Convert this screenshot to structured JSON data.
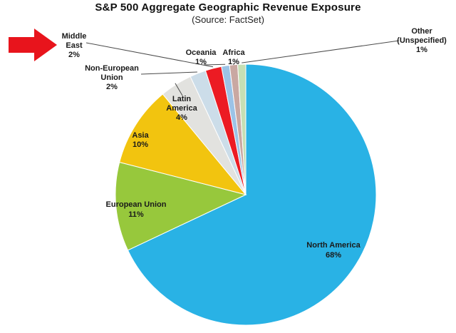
{
  "title": "S&P 500 Aggregate Geographic Revenue Exposure",
  "subtitle": "(Source: FactSet)",
  "chart_data": {
    "type": "pie",
    "title": "S&P 500 Aggregate Geographic Revenue Exposure",
    "subtitle": "(Source: FactSet)",
    "start_angle_deg": 0,
    "direction": "clockwise",
    "slices": [
      {
        "label": "North America",
        "value": 68,
        "pct_label": "68%",
        "color": "#29B2E5"
      },
      {
        "label": "European Union",
        "value": 11,
        "pct_label": "11%",
        "color": "#97C83C"
      },
      {
        "label": "Asia",
        "value": 10,
        "pct_label": "10%",
        "color": "#F2C40F"
      },
      {
        "label": "Latin America",
        "value": 4,
        "pct_label": "4%",
        "color": "#E2E2DF"
      },
      {
        "label": "Non-European Union",
        "value": 2,
        "pct_label": "2%",
        "color": "#CCDDE9"
      },
      {
        "label": "Middle East",
        "value": 2,
        "pct_label": "2%",
        "color": "#EC1B23"
      },
      {
        "label": "Oceania",
        "value": 1,
        "pct_label": "1%",
        "color": "#9CC3E6"
      },
      {
        "label": "Africa",
        "value": 1,
        "pct_label": "1%",
        "color": "#C9A8A2"
      },
      {
        "label": "Other (Unspecified)",
        "value": 1,
        "pct_label": "1%",
        "color": "#C6DFB4"
      }
    ],
    "annotations": [
      {
        "type": "arrow",
        "color": "#E8141C",
        "points_to": "Middle East"
      }
    ]
  }
}
